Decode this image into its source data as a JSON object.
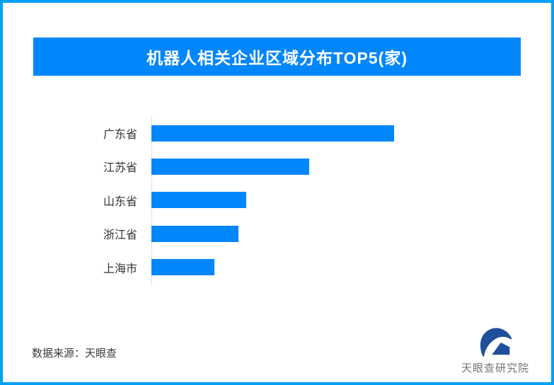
{
  "header": {
    "title": "机器人相关企业区域分布TOP5(家)"
  },
  "chart_data": {
    "type": "bar",
    "orientation": "horizontal",
    "title": "机器人相关企业区域分布TOP5(家)",
    "categories": [
      "广东省",
      "江苏省",
      "山东省",
      "浙江省",
      "上海市"
    ],
    "values_relative_pct_of_max": [
      100,
      65,
      39,
      36,
      26
    ],
    "value_axis_shown": false,
    "value_labels_shown": false,
    "grid": false,
    "legend": "none",
    "bar_color": "#0286fb",
    "baseline_color": "#e0e0e0"
  },
  "footer": {
    "source_label": "数据来源：天眼查",
    "logo": {
      "text": "天眼查研究院",
      "icon": "tianyancha-eye-logo",
      "icon_color": "#1f4e9c"
    }
  },
  "colors": {
    "frame_border": "#02a0f7",
    "title_bar_bg": "#0286fb",
    "title_text": "#ffffff",
    "bar_fill": "#0286fb",
    "axis_line": "#e0e0e0",
    "category_label": "#333333",
    "source_text": "#3a3a3a",
    "logo_icon": "#1f4e9c",
    "logo_text": "#70757a"
  }
}
